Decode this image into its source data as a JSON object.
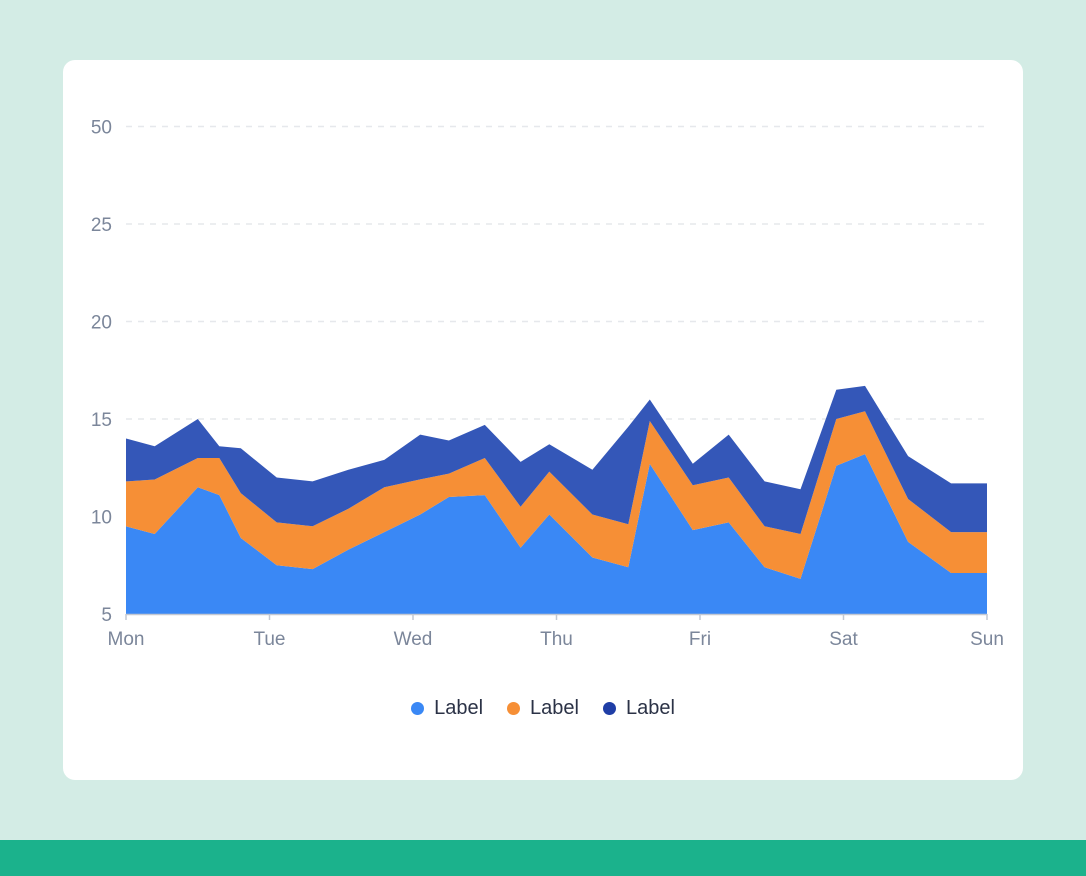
{
  "chart_data": {
    "type": "area",
    "stacked": true,
    "title": "",
    "xlabel": "",
    "ylabel": "",
    "x_ticks": [
      "Mon",
      "Tue",
      "Wed",
      "Thu",
      "Fri",
      "Sat",
      "Sun"
    ],
    "y_ticks": [
      5,
      10,
      15,
      20,
      25,
      50
    ],
    "x_range": [
      0,
      6
    ],
    "grid": true,
    "legend_position": "bottom",
    "series": [
      {
        "name": "Label",
        "color": "#3a88f5",
        "x": [
          0,
          0.2,
          0.5,
          0.65,
          0.8,
          1.05,
          1.3,
          1.55,
          1.8,
          2.05,
          2.25,
          2.5,
          2.75,
          2.95,
          3.25,
          3.5,
          3.65,
          3.95,
          4.2,
          4.45,
          4.7,
          4.95,
          5.15,
          5.45,
          5.75,
          6
        ],
        "values": [
          9.5,
          9.1,
          11.5,
          11.1,
          8.9,
          7.5,
          7.3,
          8.3,
          9.2,
          10.1,
          11.0,
          11.1,
          8.4,
          10.1,
          7.9,
          7.4,
          12.7,
          9.3,
          9.7,
          7.4,
          6.8,
          12.6,
          13.2,
          8.7,
          7.1,
          7.1
        ]
      },
      {
        "name": "Label",
        "color": "#f68f36",
        "x": [
          0,
          0.2,
          0.5,
          0.65,
          0.8,
          1.05,
          1.3,
          1.55,
          1.8,
          2.05,
          2.25,
          2.5,
          2.75,
          2.95,
          3.25,
          3.5,
          3.65,
          3.95,
          4.2,
          4.45,
          4.7,
          4.95,
          5.15,
          5.45,
          5.75,
          6
        ],
        "values": [
          2.3,
          2.8,
          1.5,
          1.9,
          2.3,
          2.2,
          2.2,
          2.1,
          2.3,
          1.8,
          1.2,
          1.9,
          2.1,
          2.2,
          2.2,
          2.2,
          2.2,
          2.3,
          2.3,
          2.1,
          2.3,
          2.4,
          2.2,
          2.2,
          2.1,
          2.1
        ]
      },
      {
        "name": "Label",
        "color": "#3457b8",
        "x": [
          0,
          0.2,
          0.5,
          0.65,
          0.8,
          1.05,
          1.3,
          1.55,
          1.8,
          2.05,
          2.25,
          2.5,
          2.75,
          2.95,
          3.25,
          3.5,
          3.65,
          3.95,
          4.2,
          4.45,
          4.7,
          4.95,
          5.15,
          5.45,
          5.75,
          6
        ],
        "values": [
          2.2,
          1.7,
          2.0,
          0.6,
          2.3,
          2.3,
          2.3,
          2.0,
          1.4,
          2.3,
          1.7,
          1.7,
          2.3,
          1.4,
          2.3,
          5.0,
          1.1,
          1.1,
          2.2,
          2.3,
          2.3,
          1.5,
          1.3,
          2.2,
          2.5,
          2.5
        ]
      }
    ]
  }
}
